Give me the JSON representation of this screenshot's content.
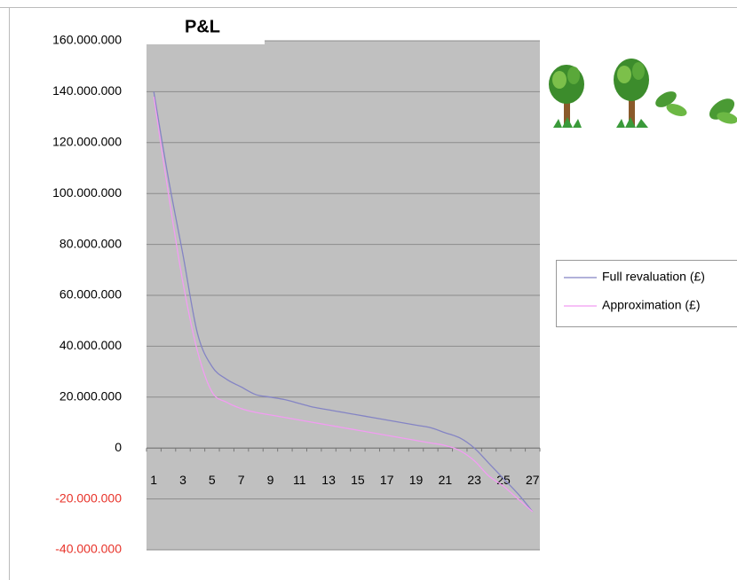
{
  "chart_data": {
    "type": "line",
    "title": "P&L",
    "categories": [
      "1",
      null,
      "3",
      null,
      "5",
      null,
      "7",
      null,
      "9",
      null,
      "11",
      null,
      "13",
      null,
      "15",
      null,
      "17",
      null,
      "19",
      null,
      "21",
      null,
      "23",
      null,
      "25",
      null,
      "27"
    ],
    "series": [
      {
        "name": "Full revaluation (£)",
        "color": "#8484c4",
        "values": [
          140000000,
          106000000,
          76000000,
          45000000,
          32000000,
          27000000,
          24000000,
          21000000,
          20000000,
          19000000,
          17500000,
          16000000,
          15000000,
          14000000,
          13000000,
          12000000,
          11000000,
          10000000,
          9000000,
          8000000,
          6000000,
          4000000,
          0,
          -6000000,
          -12000000,
          -18000000,
          -25000000
        ]
      },
      {
        "name": "Approximation (£)",
        "color": "#f29cf2",
        "values": [
          138000000,
          100000000,
          65000000,
          38000000,
          22000000,
          18000000,
          15500000,
          14000000,
          13000000,
          12000000,
          11000000,
          10000000,
          9000000,
          8000000,
          7000000,
          6000000,
          5000000,
          4000000,
          3000000,
          2000000,
          1000000,
          -1000000,
          -5000000,
          -11000000,
          -15000000,
          -20000000,
          -25000000
        ]
      }
    ],
    "ylim": [
      -40000000,
      160000000
    ],
    "yticks": [
      {
        "value": -40000000,
        "label": "-40.000.000"
      },
      {
        "value": -20000000,
        "label": "-20.000.000"
      },
      0,
      {
        "value": 20000000,
        "label": "20.000.000"
      },
      {
        "value": 40000000,
        "label": "40.000.000"
      },
      {
        "value": 60000000,
        "label": "60.000.000"
      },
      {
        "value": 80000000,
        "label": "80.000.000"
      },
      {
        "value": 100000000,
        "label": "100.000.000"
      },
      {
        "value": 120000000,
        "label": "120.000.000"
      },
      {
        "value": 140000000,
        "label": "140.000.000"
      },
      {
        "value": 160000000,
        "label": "160.000.000"
      }
    ],
    "grid": true,
    "legend": "right"
  }
}
